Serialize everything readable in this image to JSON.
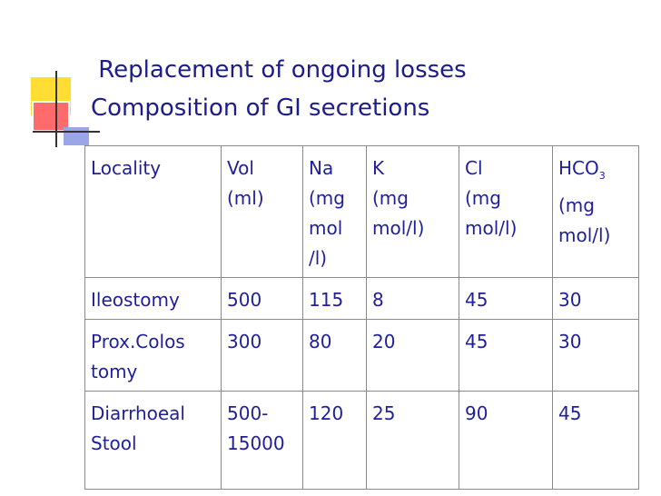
{
  "title": {
    "lines": [
      " Replacement of ongoing losses",
      "Composition of GI secretions"
    ]
  },
  "table": {
    "header": [
      {
        "lines": [
          "Locality"
        ]
      },
      {
        "lines": [
          "Vol",
          "(ml)"
        ]
      },
      {
        "lines": [
          "Na",
          "(mg",
          "mol",
          "/l)"
        ]
      },
      {
        "lines": [
          "K",
          "(mg",
          "mol/l)"
        ]
      },
      {
        "lines": [
          "Cl",
          "(mg",
          "mol/l)"
        ]
      },
      {
        "label": "HCO",
        "subscript": "3",
        "lines": [
          "(mg",
          "mol/l)"
        ]
      }
    ],
    "rows": [
      [
        [
          "Ileostomy"
        ],
        [
          "500"
        ],
        [
          "115"
        ],
        [
          "8"
        ],
        [
          "45"
        ],
        [
          "30"
        ]
      ],
      [
        [
          "Prox.Colos",
          "tomy"
        ],
        [
          "300"
        ],
        [
          "80"
        ],
        [
          "20"
        ],
        [
          "45"
        ],
        [
          "30"
        ]
      ],
      [
        [
          "Diarrhoeal",
          "Stool"
        ],
        [
          "500-",
          "15000"
        ],
        [
          "120"
        ],
        [
          "25"
        ],
        [
          "90"
        ],
        [
          "45"
        ]
      ]
    ]
  }
}
